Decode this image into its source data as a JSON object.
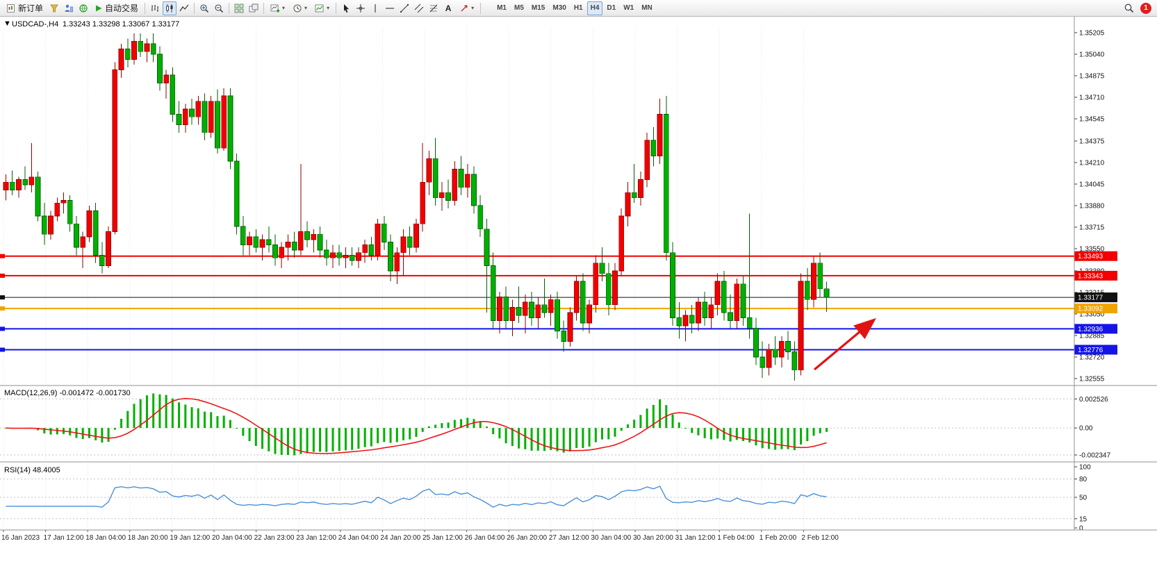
{
  "toolbar": {
    "new_order": "新订单",
    "auto_trading": "自动交易",
    "text_tool_label": "A",
    "timeframes": [
      "M1",
      "M5",
      "M15",
      "M30",
      "H1",
      "H4",
      "D1",
      "W1",
      "MN"
    ],
    "active_timeframe": "H4",
    "badge_count": "1"
  },
  "chart_header": {
    "collapse_icon": "▼",
    "title": "USDCAD-,H4",
    "ohlc": "1.33243 1.33298 1.33067 1.33177"
  },
  "price_axis": {
    "max": 1.35205,
    "min": 1.32555,
    "labels": [
      "1.35205",
      "1.35040",
      "1.34875",
      "1.34710",
      "1.34545",
      "1.34375",
      "1.34210",
      "1.34045",
      "1.33880",
      "1.33715",
      "1.33550",
      "1.33380",
      "1.33215",
      "1.33050",
      "1.32885",
      "1.32720",
      "1.32555"
    ]
  },
  "hlines": [
    {
      "price": 1.33493,
      "label": "1.33493",
      "color": "#f20000",
      "weight": 2
    },
    {
      "price": 1.33343,
      "label": "1.33343",
      "color": "#f20000",
      "weight": 2
    },
    {
      "price": 1.33177,
      "label": "1.33177",
      "color": "#111111",
      "weight": 1,
      "role": "current-price"
    },
    {
      "price": 1.33092,
      "label": "1.33092",
      "color": "#f0a400",
      "weight": 2
    },
    {
      "price": 1.32936,
      "label": "1.32936",
      "color": "#1414e8",
      "weight": 2
    },
    {
      "price": 1.32776,
      "label": "1.32776",
      "color": "#1414e8",
      "weight": 2
    }
  ],
  "time_axis": {
    "labels": [
      "16 Jan 2023",
      "17 Jan 12:00",
      "18 Jan 04:00",
      "18 Jan 20:00",
      "19 Jan 12:00",
      "20 Jan 04:00",
      "22 Jan 23:00",
      "23 Jan 12:00",
      "24 Jan 04:00",
      "24 Jan 20:00",
      "25 Jan 12:00",
      "26 Jan 04:00",
      "26 Jan 20:00",
      "27 Jan 12:00",
      "30 Jan 04:00",
      "30 Jan 20:00",
      "31 Jan 12:00",
      "1 Feb 04:00",
      "1 Feb 20:00",
      "2 Feb 12:00"
    ]
  },
  "chart_data": {
    "type": "candlestick",
    "symbol": "USDCAD-",
    "timeframe": "H4",
    "up_color": "#f20000",
    "up_stroke": "#8f0000",
    "down_color": "#00b000",
    "down_stroke": "#005f00",
    "candles": [
      [
        1.34,
        1.3412,
        1.3392,
        1.3406
      ],
      [
        1.3406,
        1.3415,
        1.3396,
        1.34
      ],
      [
        1.34,
        1.341,
        1.3394,
        1.3408
      ],
      [
        1.3408,
        1.3418,
        1.34,
        1.3404
      ],
      [
        1.3404,
        1.3436,
        1.3398,
        1.341
      ],
      [
        1.341,
        1.3414,
        1.3376,
        1.338
      ],
      [
        1.338,
        1.339,
        1.3358,
        1.3366
      ],
      [
        1.3366,
        1.3384,
        1.3362,
        1.338
      ],
      [
        1.338,
        1.3394,
        1.3376,
        1.339
      ],
      [
        1.339,
        1.3398,
        1.3382,
        1.3392
      ],
      [
        1.3392,
        1.3396,
        1.3368,
        1.3374
      ],
      [
        1.3374,
        1.338,
        1.335,
        1.3356
      ],
      [
        1.3356,
        1.3368,
        1.334,
        1.3364
      ],
      [
        1.3364,
        1.3388,
        1.336,
        1.3384
      ],
      [
        1.3384,
        1.339,
        1.3344,
        1.335
      ],
      [
        1.335,
        1.336,
        1.3336,
        1.3342
      ],
      [
        1.3342,
        1.3372,
        1.334,
        1.3368
      ],
      [
        1.3368,
        1.3498,
        1.3366,
        1.3492
      ],
      [
        1.3492,
        1.3512,
        1.3486,
        1.3508
      ],
      [
        1.3508,
        1.3516,
        1.3494,
        1.35
      ],
      [
        1.35,
        1.352,
        1.3496,
        1.3514
      ],
      [
        1.3514,
        1.352,
        1.3502,
        1.3506
      ],
      [
        1.3506,
        1.3516,
        1.3498,
        1.3512
      ],
      [
        1.3512,
        1.352,
        1.3498,
        1.3504
      ],
      [
        1.3504,
        1.351,
        1.3476,
        1.3482
      ],
      [
        1.3482,
        1.3492,
        1.347,
        1.3488
      ],
      [
        1.3488,
        1.3494,
        1.3452,
        1.3458
      ],
      [
        1.3458,
        1.3468,
        1.3444,
        1.345
      ],
      [
        1.345,
        1.3466,
        1.3444,
        1.3462
      ],
      [
        1.3462,
        1.347,
        1.345,
        1.3456
      ],
      [
        1.3456,
        1.3472,
        1.345,
        1.3468
      ],
      [
        1.3468,
        1.3474,
        1.3438,
        1.3444
      ],
      [
        1.3444,
        1.3472,
        1.344,
        1.3468
      ],
      [
        1.3468,
        1.3477,
        1.3428,
        1.3432
      ],
      [
        1.3432,
        1.3478,
        1.343,
        1.3472
      ],
      [
        1.3472,
        1.3478,
        1.3416,
        1.3422
      ],
      [
        1.3422,
        1.3428,
        1.3366,
        1.3372
      ],
      [
        1.3372,
        1.338,
        1.335,
        1.3358
      ],
      [
        1.3358,
        1.3368,
        1.335,
        1.3364
      ],
      [
        1.3364,
        1.337,
        1.3352,
        1.3356
      ],
      [
        1.3356,
        1.3366,
        1.3346,
        1.3362
      ],
      [
        1.3362,
        1.3372,
        1.3352,
        1.3358
      ],
      [
        1.3358,
        1.3366,
        1.3342,
        1.3348
      ],
      [
        1.3348,
        1.336,
        1.334,
        1.3356
      ],
      [
        1.3356,
        1.3366,
        1.3346,
        1.336
      ],
      [
        1.336,
        1.3368,
        1.3348,
        1.3354
      ],
      [
        1.3354,
        1.342,
        1.335,
        1.3368
      ],
      [
        1.3368,
        1.3376,
        1.3356,
        1.3362
      ],
      [
        1.3362,
        1.337,
        1.3352,
        1.3366
      ],
      [
        1.3366,
        1.3372,
        1.3348,
        1.3354
      ],
      [
        1.3354,
        1.3362,
        1.3342,
        1.3348
      ],
      [
        1.3348,
        1.3358,
        1.334,
        1.3352
      ],
      [
        1.3352,
        1.3358,
        1.3342,
        1.3348
      ],
      [
        1.3348,
        1.3356,
        1.334,
        1.335
      ],
      [
        1.335,
        1.3356,
        1.3342,
        1.3346
      ],
      [
        1.3346,
        1.3356,
        1.334,
        1.3352
      ],
      [
        1.3352,
        1.3362,
        1.3344,
        1.3358
      ],
      [
        1.3358,
        1.3364,
        1.3346,
        1.335
      ],
      [
        1.335,
        1.3378,
        1.3346,
        1.3374
      ],
      [
        1.3374,
        1.338,
        1.3354,
        1.336
      ],
      [
        1.336,
        1.3366,
        1.333,
        1.3338
      ],
      [
        1.3338,
        1.3356,
        1.3328,
        1.3352
      ],
      [
        1.3352,
        1.337,
        1.3334,
        1.3364
      ],
      [
        1.3364,
        1.3372,
        1.335,
        1.3356
      ],
      [
        1.3356,
        1.3378,
        1.3352,
        1.3374
      ],
      [
        1.3374,
        1.3436,
        1.3368,
        1.3406
      ],
      [
        1.3406,
        1.343,
        1.3396,
        1.3424
      ],
      [
        1.3424,
        1.344,
        1.3388,
        1.3394
      ],
      [
        1.3394,
        1.3406,
        1.3384,
        1.3398
      ],
      [
        1.3398,
        1.3408,
        1.3386,
        1.3392
      ],
      [
        1.3392,
        1.3422,
        1.3388,
        1.3416
      ],
      [
        1.3416,
        1.3426,
        1.3396,
        1.3402
      ],
      [
        1.3402,
        1.342,
        1.3394,
        1.3412
      ],
      [
        1.3412,
        1.3418,
        1.3382,
        1.3388
      ],
      [
        1.3388,
        1.3396,
        1.3364,
        1.337
      ],
      [
        1.337,
        1.3378,
        1.3306,
        1.3342
      ],
      [
        1.3342,
        1.3352,
        1.3294,
        1.33
      ],
      [
        1.33,
        1.3322,
        1.329,
        1.3318
      ],
      [
        1.3318,
        1.3326,
        1.3294,
        1.33
      ],
      [
        1.33,
        1.3316,
        1.3288,
        1.331
      ],
      [
        1.331,
        1.3326,
        1.3298,
        1.3304
      ],
      [
        1.3304,
        1.332,
        1.329,
        1.3314
      ],
      [
        1.3314,
        1.3322,
        1.3296,
        1.3302
      ],
      [
        1.3302,
        1.3318,
        1.3294,
        1.3312
      ],
      [
        1.3312,
        1.3332,
        1.3302,
        1.3306
      ],
      [
        1.3306,
        1.332,
        1.3296,
        1.3316
      ],
      [
        1.3316,
        1.3322,
        1.3286,
        1.3292
      ],
      [
        1.3292,
        1.33,
        1.3276,
        1.3284
      ],
      [
        1.3284,
        1.331,
        1.328,
        1.3306
      ],
      [
        1.3306,
        1.3334,
        1.33,
        1.333
      ],
      [
        1.333,
        1.3336,
        1.3292,
        1.3298
      ],
      [
        1.3298,
        1.3316,
        1.329,
        1.3312
      ],
      [
        1.3312,
        1.335,
        1.3306,
        1.3344
      ],
      [
        1.3344,
        1.3356,
        1.333,
        1.3336
      ],
      [
        1.3336,
        1.3344,
        1.3304,
        1.3312
      ],
      [
        1.3312,
        1.3344,
        1.3308,
        1.3338
      ],
      [
        1.3338,
        1.3386,
        1.3334,
        1.338
      ],
      [
        1.338,
        1.3406,
        1.3372,
        1.3398
      ],
      [
        1.3398,
        1.342,
        1.339,
        1.3394
      ],
      [
        1.3394,
        1.3414,
        1.3388,
        1.3408
      ],
      [
        1.3408,
        1.3444,
        1.3402,
        1.3438
      ],
      [
        1.3438,
        1.3448,
        1.3418,
        1.3426
      ],
      [
        1.3426,
        1.347,
        1.342,
        1.3458
      ],
      [
        1.3458,
        1.3472,
        1.3346,
        1.3352
      ],
      [
        1.3352,
        1.336,
        1.3296,
        1.3302
      ],
      [
        1.3302,
        1.3314,
        1.3286,
        1.3296
      ],
      [
        1.3296,
        1.3308,
        1.3284,
        1.3304
      ],
      [
        1.3304,
        1.3312,
        1.329,
        1.3298
      ],
      [
        1.3298,
        1.3318,
        1.3292,
        1.3314
      ],
      [
        1.3314,
        1.3322,
        1.3296,
        1.3302
      ],
      [
        1.3302,
        1.3318,
        1.3294,
        1.3312
      ],
      [
        1.3312,
        1.3336,
        1.3304,
        1.333
      ],
      [
        1.333,
        1.3338,
        1.33,
        1.3306
      ],
      [
        1.3306,
        1.332,
        1.3294,
        1.33
      ],
      [
        1.33,
        1.3332,
        1.3294,
        1.3328
      ],
      [
        1.3328,
        1.3334,
        1.3296,
        1.3302
      ],
      [
        1.3302,
        1.3382,
        1.3286,
        1.3294
      ],
      [
        1.3294,
        1.3302,
        1.3266,
        1.3272
      ],
      [
        1.3272,
        1.3284,
        1.3256,
        1.3264
      ],
      [
        1.3264,
        1.3282,
        1.3258,
        1.3278
      ],
      [
        1.3278,
        1.3288,
        1.3266,
        1.3272
      ],
      [
        1.3272,
        1.3288,
        1.3264,
        1.3284
      ],
      [
        1.3284,
        1.3292,
        1.327,
        1.3276
      ],
      [
        1.3276,
        1.3284,
        1.3254,
        1.3262
      ],
      [
        1.3262,
        1.3336,
        1.3258,
        1.333
      ],
      [
        1.333,
        1.334,
        1.3308,
        1.3316
      ],
      [
        1.3316,
        1.3349,
        1.331,
        1.3344
      ],
      [
        1.3344,
        1.3352,
        1.3318,
        1.33243
      ],
      [
        1.33243,
        1.33298,
        1.33067,
        1.33177
      ]
    ]
  },
  "macd_panel": {
    "label": "MACD(12,26,9) -0.001472 -0.001730",
    "macd_value": "-0.001472",
    "signal_value": "-0.001730",
    "scale_labels": [
      "0.002526",
      "0.00",
      "-0.002347"
    ],
    "scale_values": [
      0.002526,
      0,
      -0.002347
    ],
    "histogram_color": "#00b000",
    "signal_color": "#ee1515"
  },
  "rsi_panel": {
    "label": "RSI(14) 48.4005",
    "value": "48.4005",
    "scale_labels": [
      "100",
      "80",
      "50",
      "15",
      "0"
    ],
    "scale_values": [
      100,
      80,
      50,
      15,
      0
    ],
    "levels": [
      80,
      50,
      15
    ],
    "line_color": "#4a90d9"
  },
  "annotation": {
    "arrow_color": "#e31212"
  }
}
